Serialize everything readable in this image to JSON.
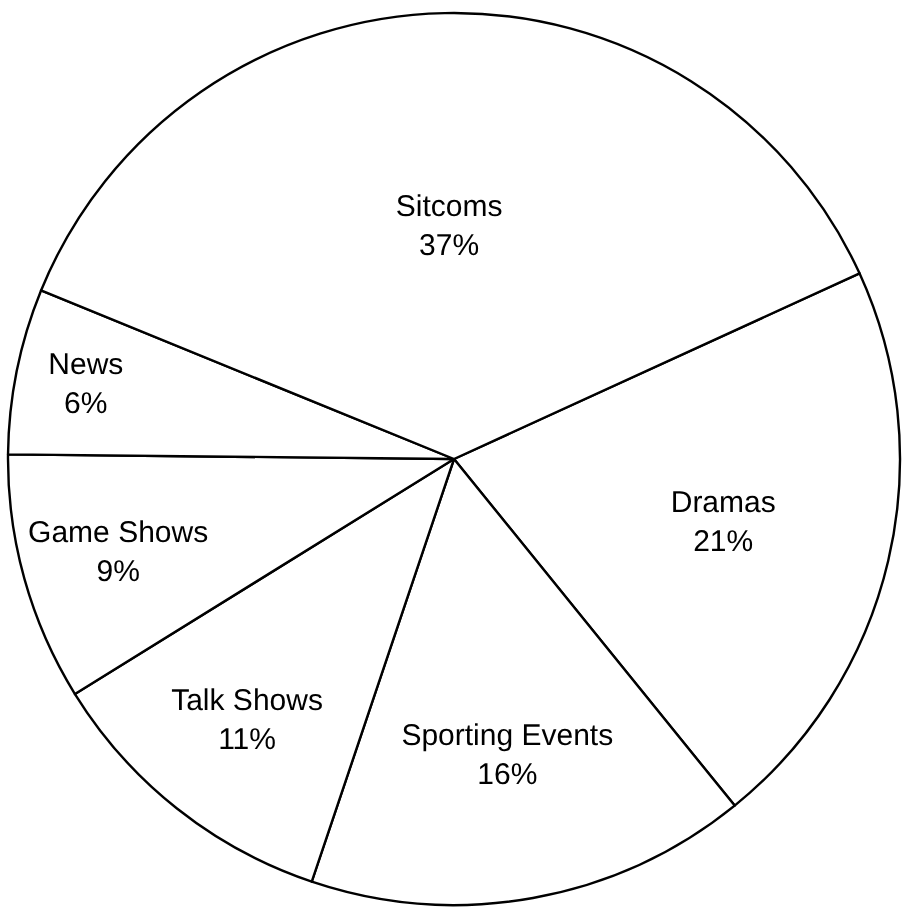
{
  "chart_data": {
    "type": "pie",
    "categories": [
      "Dramas",
      "Sporting Events",
      "Talk Shows",
      "Game Shows",
      "News",
      "Sitcoms"
    ],
    "values": [
      21,
      16,
      11,
      9,
      6,
      37
    ],
    "value_labels": [
      "21%",
      "16%",
      "11%",
      "9%",
      "6%",
      "37%"
    ],
    "colors": [
      "#ffffff",
      "#ffffff",
      "#ffffff",
      "#ffffff",
      "#ffffff",
      "#ffffff"
    ],
    "legend": false
  }
}
